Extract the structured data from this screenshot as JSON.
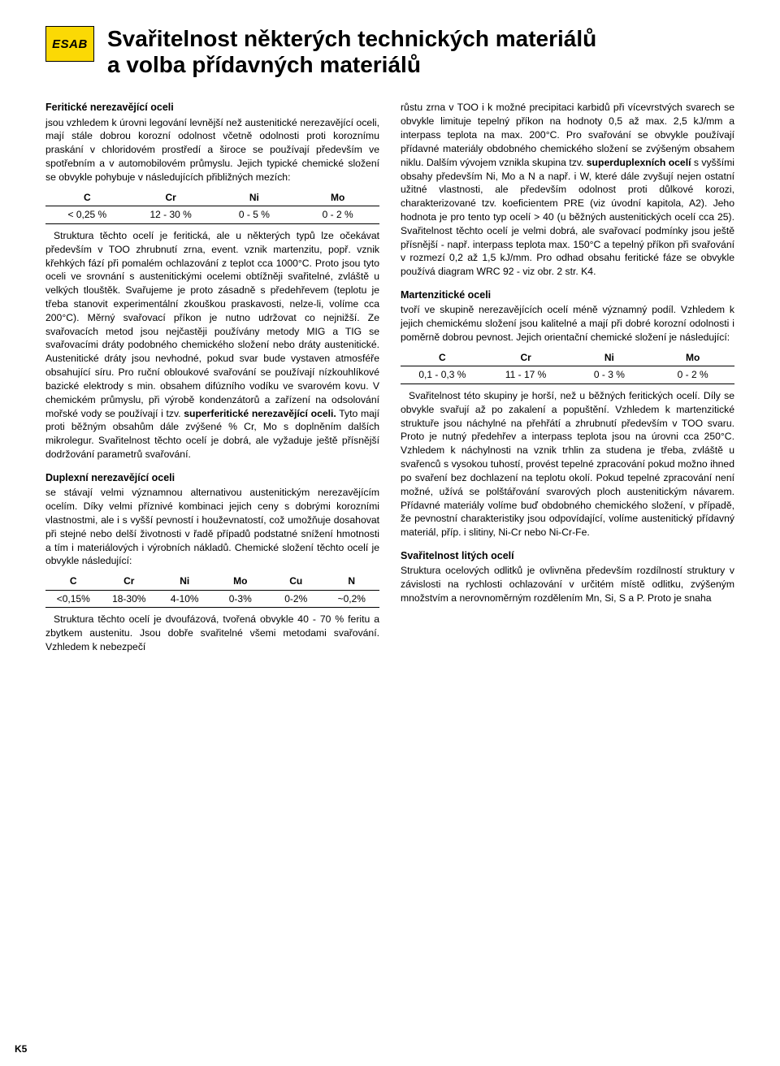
{
  "logo_text": "ESAB",
  "title_line1": "Svařitelnost některých technických materiálů",
  "title_line2": "a volba přídavných materiálů",
  "page_number": "K5",
  "left": {
    "feritic_h": "Feritické nerezavějící oceli",
    "feritic_p1": "jsou vzhledem k úrovni legování levnější než austenitické nerezavějící oceli, mají stále dobrou korozní odolnost včetně odolnosti proti koroznímu praskání v chloridovém prostředí a široce se používají především ve spotřebním a v automobilovém průmyslu. Jejich typické chemické složení se obvykle pohybuje v následujících přibližných mezích:",
    "feritic_table": {
      "cols": [
        "C",
        "Cr",
        "Ni",
        "Mo"
      ],
      "row": [
        "< 0,25 %",
        "12 - 30 %",
        "0 - 5 %",
        "0 - 2 %"
      ]
    },
    "feritic_p2a": "Struktura těchto ocelí je feritická, ale u některých typů lze očekávat především v TOO zhrubnutí zrna, event. vznik martenzitu, popř. vznik křehkých fází při pomalém ochlazování z teplot cca 1000°C. Proto jsou tyto oceli ve srovnání s austenitickými ocelemi obtížněji svařitelné, zvláště u velkých tlouštěk. Svařujeme je proto zásadně s předehřevem (teplotu je třeba stanovit experimentální zkouškou praskavosti, nelze-li, volíme cca 200°C). Měrný svařovací příkon je nutno udržovat co nejnižší. Ze svařovacích metod jsou nejčastěji používány metody MIG a TIG se svařovacími dráty podobného chemického složení nebo dráty austenitické. Austenitické dráty jsou nevhodné, pokud svar bude vystaven atmosféře obsahující síru. Pro ruční obloukové svařování se používají nízkouhlíkové bazické elektrody s min. obsahem difúzního vodíku ve svarovém kovu. V chemickém průmyslu, při výrobě kondenzátorů a zařízení na odsolování mořské vody se používají i tzv. ",
    "superferitic_label": "superferitické nerezavějící oceli.",
    "feritic_p2b": " Tyto mají proti běžným obsahům dále zvýšené % Cr, Mo s doplněním dalších mikrolegur. Svařitelnost těchto ocelí je dobrá, ale vyžaduje ještě přísnější dodržování parametrů svařování.",
    "duplex_h": "Duplexní nerezavějící oceli",
    "duplex_p1": "se stávají velmi významnou alternativou austenitickým nerezavějícím ocelím. Díky velmi příznivé kombinaci jejich ceny s dobrými korozními vlastnostmi, ale i s vyšší pevností i houževnatostí, což umožňuje dosahovat při stejné nebo delší životnosti v řadě případů podstatné snížení hmotnosti a tím i materiálových i výrobních nákladů. Chemické složení těchto ocelí je obvykle následující:",
    "duplex_table": {
      "cols": [
        "C",
        "Cr",
        "Ni",
        "Mo",
        "Cu",
        "N"
      ],
      "row": [
        "<0,15%",
        "18-30%",
        "4-10%",
        "0-3%",
        "0-2%",
        "~0,2%"
      ]
    },
    "duplex_p2": "Struktura těchto ocelí je dvoufázová, tvořená obvykle 40 - 70 % feritu a zbytkem austenitu. Jsou dobře svařitelné všemi metodami svařování. Vzhledem k nebezpečí"
  },
  "right": {
    "cont_p1a": "růstu zrna v TOO i k možné precipitaci karbidů při vícevrstvých svarech se obvykle limituje tepelný příkon na hodnoty 0,5 až max. 2,5 kJ/mm a interpass teplota na max. 200°C. Pro svařování se obvykle používají přídavné materiály obdobného chemického složení se zvýšeným obsahem niklu. Dalším vývojem vznikla skupina tzv. ",
    "superduplex_label": "superduplexních ocelí",
    "cont_p1b": " s vyššími obsahy především Ni, Mo a N a např.  i W, které dále zvyšují nejen ostatní užitné vlastnosti, ale především odolnost proti důlkové korozi, charakterizované tzv. koeficientem PRE (viz úvodní kapitola, A2). Jeho hodnota je pro tento typ ocelí > 40 (u běžných austenitických ocelí cca 25). Svařitelnost těchto ocelí je velmi dobrá, ale svařovací podmínky jsou ještě přísnější - např. interpass teplota max. 150°C a tepelný příkon při svařování v rozmezí 0,2 až 1,5 kJ/mm. Pro odhad obsahu feritické fáze se obvykle používá diagram WRC 92 - viz obr. 2 str. K4.",
    "marten_h": "Martenzitické oceli",
    "marten_p1": "tvoří ve skupině nerezavějících ocelí méně významný podíl. Vzhledem k jejich chemickému složení jsou kalitelné a mají při dobré korozní odolnosti i poměrně dobrou pevnost. Jejich orientační chemické složení je následující:",
    "marten_table": {
      "cols": [
        "C",
        "Cr",
        "Ni",
        "Mo"
      ],
      "row": [
        "0,1 - 0,3 %",
        "11 - 17 %",
        "0 - 3 %",
        "0 - 2 %"
      ]
    },
    "marten_p2": "Svařitelnost této skupiny je horší, než u běžných feritických ocelí. Díly se obvykle svařují až po zakalení a popuštění. Vzhledem k martenzitické struktuře jsou náchylné na přehřátí a zhrubnutí především v TOO svaru. Proto je nutný předehřev a interpass teplota jsou na úrovni cca 250°C. Vzhledem k náchylnosti na vznik trhlin za studena je třeba, zvláště u svařenců s vysokou tuhostí, provést tepelné zpracování pokud možno ihned po svaření bez dochlazení na teplotu okolí. Pokud tepelné zpracování není možné, užívá se polštářování svarových ploch austenitickým návarem. Přídavné materiály volíme buď obdobného chemického složení, v případě, že pevnostní charakteristiky jsou odpovídající, volíme austenitický přídavný materiál, příp. i slitiny, Ni-Cr nebo Ni-Cr-Fe.",
    "cast_h": "Svařitelnost litých ocelí",
    "cast_p1": "Struktura ocelových odlitků je ovlivněna především rozdílností struktury v závislosti na rychlosti ochlazování v určitém místě odlitku, zvýšeným množstvím a nerovnoměrným rozdělením Mn, Si, S a P. Proto je snaha"
  },
  "colors": {
    "logo_bg": "#fbd905",
    "text": "#000000",
    "bg": "#ffffff",
    "rule": "#000000"
  }
}
